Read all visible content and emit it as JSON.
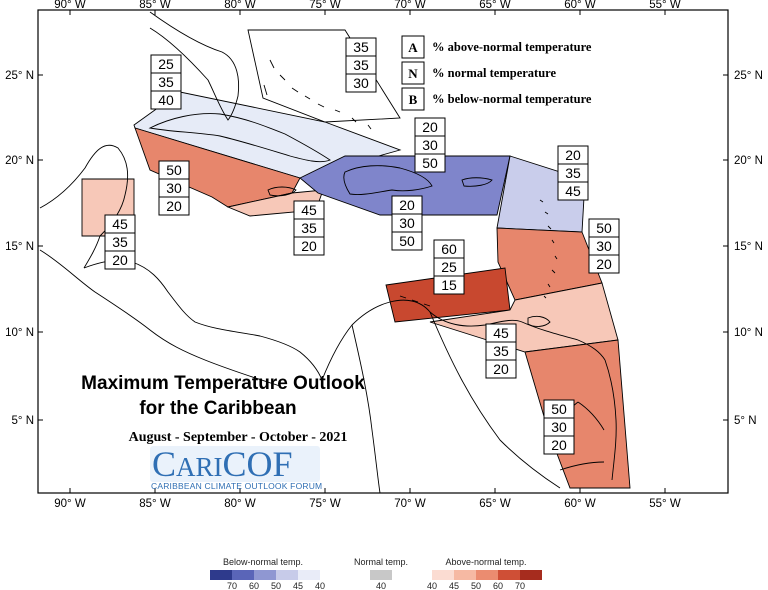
{
  "axes": {
    "x_ticks": [
      "90° W",
      "85° W",
      "80° W",
      "75° W",
      "70° W",
      "65° W",
      "60° W",
      "55° W"
    ],
    "y_ticks": [
      "25° N",
      "20° N",
      "15° N",
      "10° N",
      "5° N"
    ]
  },
  "key": [
    {
      "letter": "A",
      "text": "% above-normal temperature"
    },
    {
      "letter": "N",
      "text": "% normal temperature"
    },
    {
      "letter": "B",
      "text": "% below-normal temperature"
    }
  ],
  "title": {
    "line1": "Maximum Temperature Outlook",
    "line2": "for the Caribbean",
    "period": "August - September - October - 2021"
  },
  "logo": {
    "c1": "C",
    "ari": "ARI",
    "cof": "COF",
    "tagline": "CARIBBEAN CLIMATE OUTLOOK FORUM"
  },
  "regions": [
    {
      "id": "bahamas",
      "A": "35",
      "N": "35",
      "B": "30",
      "category": "none"
    },
    {
      "id": "cuba-west",
      "A": "25",
      "N": "35",
      "B": "40",
      "category": "below-40"
    },
    {
      "id": "cayman-jamaica-south",
      "A": "50",
      "N": "30",
      "B": "20",
      "category": "above-50"
    },
    {
      "id": "belize",
      "A": "45",
      "N": "35",
      "B": "20",
      "category": "above-45"
    },
    {
      "id": "jamaica",
      "A": "45",
      "N": "35",
      "B": "20",
      "category": "above-45"
    },
    {
      "id": "greater-antilles-east",
      "A": "20",
      "N": "30",
      "B": "50",
      "category": "below-50"
    },
    {
      "id": "hispaniola-south",
      "A": "20",
      "N": "30",
      "B": "50",
      "category": "below-50"
    },
    {
      "id": "leeward-north",
      "A": "20",
      "N": "35",
      "B": "45",
      "category": "below-45"
    },
    {
      "id": "windward-islands",
      "A": "50",
      "N": "30",
      "B": "20",
      "category": "above-50"
    },
    {
      "id": "abc-islands",
      "A": "60",
      "N": "25",
      "B": "15",
      "category": "above-60"
    },
    {
      "id": "trinidad",
      "A": "45",
      "N": "35",
      "B": "20",
      "category": "above-45"
    },
    {
      "id": "guianas",
      "A": "50",
      "N": "30",
      "B": "20",
      "category": "above-50"
    }
  ],
  "legend": {
    "below_title": "Below-normal temp.",
    "normal_title": "Normal temp.",
    "above_title": "Above-normal temp.",
    "below_ticks": [
      "70",
      "60",
      "50",
      "45",
      "40"
    ],
    "normal_ticks": [
      "40"
    ],
    "above_ticks": [
      "40",
      "45",
      "50",
      "60",
      "70"
    ],
    "below_colors": [
      "#2e3a8c",
      "#5a65b8",
      "#8f97d2",
      "#c7cbe9",
      "#e9ecf8"
    ],
    "normal_colors": [
      "#c8c8c8"
    ],
    "above_colors": [
      "#fbdcd2",
      "#f6b9a3",
      "#eb8c70",
      "#cf4f36",
      "#a62c1e"
    ]
  },
  "colors": {
    "below-50": "#7f85cb",
    "below-45": "#c9cdeb",
    "below-40": "#e6ebf7",
    "above-45": "#f7c8b8",
    "above-50": "#e7866c",
    "above-60": "#c8482f",
    "none": "#ffffff"
  }
}
